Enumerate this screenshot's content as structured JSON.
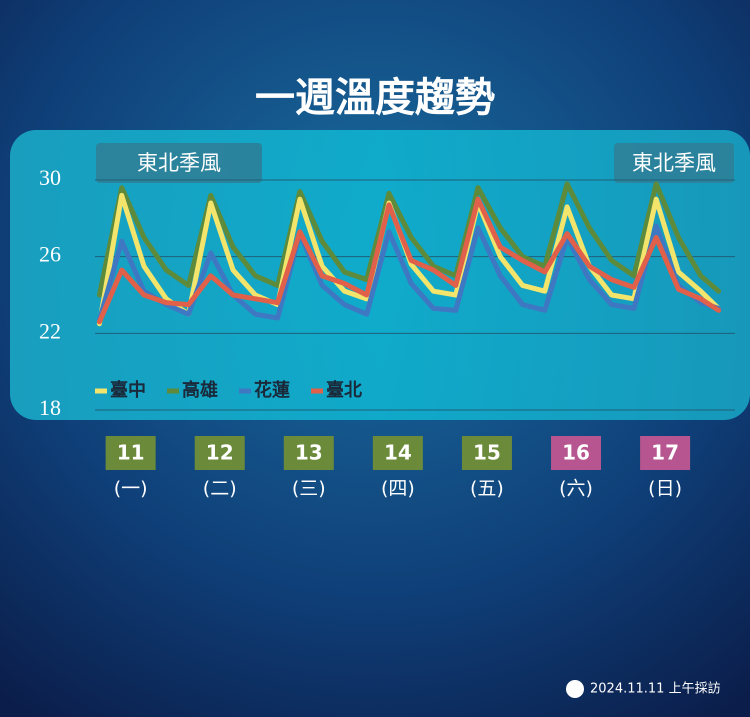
{
  "chart_data": {
    "type": "line",
    "title": "一週溫度趨勢",
    "annotations": [
      "東北季風",
      "東北季風"
    ],
    "x": [
      10.65,
      10.9,
      11.15,
      11.4,
      11.65,
      11.9,
      12.15,
      12.4,
      12.65,
      12.9,
      13.15,
      13.4,
      13.65,
      13.9,
      14.15,
      14.4,
      14.65,
      14.9,
      15.15,
      15.4,
      15.65,
      15.9,
      16.15,
      16.4,
      16.65,
      16.9,
      17.15,
      17.4,
      17.6
    ],
    "xlim": [
      10.6,
      17.65
    ],
    "xticks": [
      11,
      12,
      13,
      14,
      15,
      16,
      17
    ],
    "xtick_colors": [
      "#6b8b3a",
      "#6b8b3a",
      "#6b8b3a",
      "#6b8b3a",
      "#6b8b3a",
      "#b6558f",
      "#b6558f"
    ],
    "weekdays": [
      "(一)",
      "(二)",
      "(三)",
      "(四)",
      "(五)",
      "(六)",
      "(日)"
    ],
    "ylim": [
      18,
      30
    ],
    "yticks": [
      18,
      22,
      26,
      30
    ],
    "grid": true,
    "series": [
      {
        "name": "臺中",
        "color": "#f3e46c",
        "values": [
          22.5,
          29.2,
          25.5,
          23.8,
          23,
          28.8,
          25.3,
          24,
          23.5,
          29,
          25.5,
          24.2,
          23.8,
          28.8,
          25.6,
          24.2,
          24,
          28.8,
          26,
          24.5,
          24.2,
          28.6,
          25.5,
          24,
          23.8,
          29,
          25.2,
          24.2,
          23.3
        ]
      },
      {
        "name": "高雄",
        "color": "#5d8a3b",
        "values": [
          24,
          29.6,
          27,
          25.3,
          24.5,
          29.2,
          26.5,
          25,
          24.5,
          29.4,
          26.8,
          25.2,
          24.8,
          29.3,
          27,
          25.5,
          25,
          29.6,
          27.5,
          26,
          25.5,
          29.8,
          27.5,
          25.8,
          25,
          29.8,
          27,
          25,
          24.2
        ]
      },
      {
        "name": "花蓮",
        "color": "#3f78c2",
        "values": [
          22.7,
          26.8,
          24.2,
          23.5,
          23,
          26.2,
          24,
          23,
          22.8,
          27.2,
          24.5,
          23.5,
          23,
          27.3,
          24.6,
          23.3,
          23.2,
          27.5,
          25,
          23.5,
          23.2,
          27,
          24.8,
          23.5,
          23.3,
          27.6,
          24.5,
          23.6,
          23.3
        ]
      },
      {
        "name": "臺北",
        "color": "#e0604a",
        "values": [
          22.6,
          25.3,
          24,
          23.6,
          23.5,
          25,
          24,
          23.8,
          23.6,
          27.3,
          25,
          24.6,
          24,
          28.7,
          25.8,
          25.3,
          24.5,
          29,
          26.5,
          25.8,
          25.2,
          27.2,
          25.5,
          24.8,
          24.4,
          27,
          24.3,
          23.8,
          23.2
        ]
      }
    ]
  },
  "footer": "2024.11.11 上午採訪"
}
